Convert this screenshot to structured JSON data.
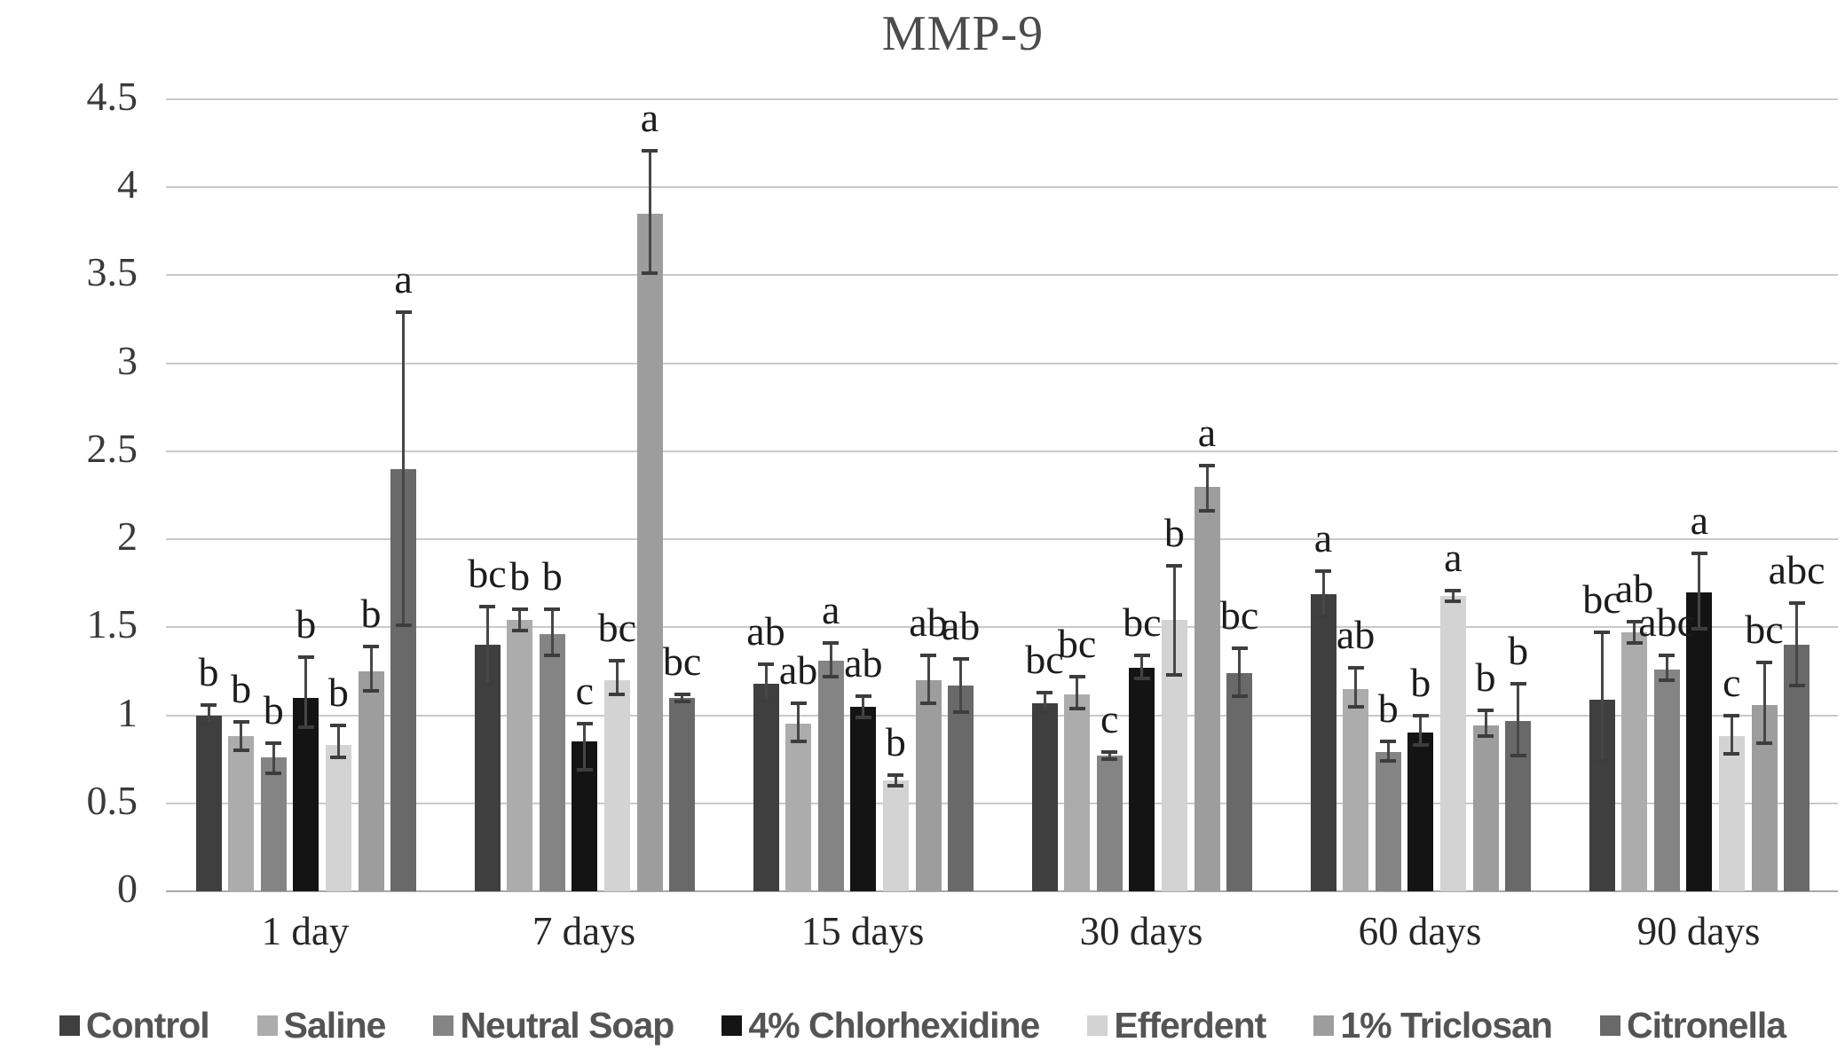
{
  "chart_data": {
    "type": "bar",
    "title": "MMP-9",
    "xlabel": "",
    "ylabel": "",
    "ylim": [
      0,
      4.5
    ],
    "y_tick_step": 0.5,
    "y_tick_labels": [
      "0",
      "0.5",
      "1",
      "1.5",
      "2",
      "2.5",
      "3",
      "3.5",
      "4",
      "4.5"
    ],
    "grid": "horizontal",
    "legend_position": "bottom",
    "categories": [
      "1 day",
      "7 days",
      "15 days",
      "30 days",
      "60 days",
      "90 days"
    ],
    "series": [
      {
        "name": "Control",
        "color": "#3f3f3f",
        "values": [
          1.0,
          1.4,
          1.18,
          1.07,
          1.69,
          1.09
        ],
        "err_up": [
          0.06,
          0.22,
          0.11,
          0.06,
          0.13,
          0.38
        ],
        "err_down": [
          0.05,
          0.22,
          0.1,
          0.05,
          0.13,
          0.35
        ],
        "letters": [
          "b",
          "bc",
          "ab",
          "bc",
          "a",
          "bc"
        ]
      },
      {
        "name": "Saline",
        "color": "#acacac",
        "values": [
          0.88,
          1.54,
          0.95,
          1.12,
          1.15,
          1.47
        ],
        "err_up": [
          0.08,
          0.06,
          0.12,
          0.1,
          0.12,
          0.06
        ],
        "err_down": [
          0.08,
          0.06,
          0.1,
          0.08,
          0.1,
          0.06
        ],
        "letters": [
          "b",
          "b",
          "ab",
          "bc",
          "ab",
          "ab"
        ]
      },
      {
        "name": "Neutral Soap",
        "color": "#848484",
        "values": [
          0.76,
          1.46,
          1.31,
          0.77,
          0.79,
          1.26
        ],
        "err_up": [
          0.08,
          0.14,
          0.1,
          0.02,
          0.06,
          0.08
        ],
        "err_down": [
          0.09,
          0.12,
          0.09,
          0.02,
          0.05,
          0.06
        ],
        "letters": [
          "b",
          "b",
          "a",
          "c",
          "b",
          "abc"
        ]
      },
      {
        "name": "4% Chlorhexidine",
        "color": "#141414",
        "values": [
          1.1,
          0.85,
          1.05,
          1.27,
          0.9,
          1.7
        ],
        "err_up": [
          0.23,
          0.1,
          0.06,
          0.07,
          0.1,
          0.22
        ],
        "err_down": [
          0.17,
          0.16,
          0.06,
          0.06,
          0.07,
          0.21
        ],
        "letters": [
          "b",
          "c",
          "ab",
          "bc",
          "b",
          "a"
        ]
      },
      {
        "name": "Efferdent",
        "color": "#d3d3d3",
        "values": [
          0.83,
          1.2,
          0.63,
          1.54,
          1.68,
          0.88
        ],
        "err_up": [
          0.11,
          0.11,
          0.03,
          0.31,
          0.03,
          0.12
        ],
        "err_down": [
          0.07,
          0.08,
          0.03,
          0.31,
          0.03,
          0.1
        ],
        "letters": [
          "b",
          "bc",
          "b",
          "b",
          "a",
          "c"
        ]
      },
      {
        "name": "1% Triclosan",
        "color": "#9d9d9d",
        "values": [
          1.25,
          3.85,
          1.2,
          2.3,
          0.94,
          1.06
        ],
        "err_up": [
          0.14,
          0.36,
          0.14,
          0.12,
          0.09,
          0.24
        ],
        "err_down": [
          0.11,
          0.34,
          0.13,
          0.14,
          0.06,
          0.22
        ],
        "letters": [
          "b",
          "a",
          "ab",
          "a",
          "b",
          "bc"
        ]
      },
      {
        "name": "Citronella",
        "color": "#696969",
        "values": [
          2.4,
          1.1,
          1.17,
          1.24,
          0.97,
          1.4
        ],
        "err_up": [
          0.89,
          0.02,
          0.15,
          0.14,
          0.21,
          0.24
        ],
        "err_down": [
          0.89,
          0.02,
          0.15,
          0.13,
          0.2,
          0.23
        ],
        "letters": [
          "a",
          "bc",
          "ab",
          "bc",
          "b",
          "abc"
        ]
      }
    ]
  }
}
